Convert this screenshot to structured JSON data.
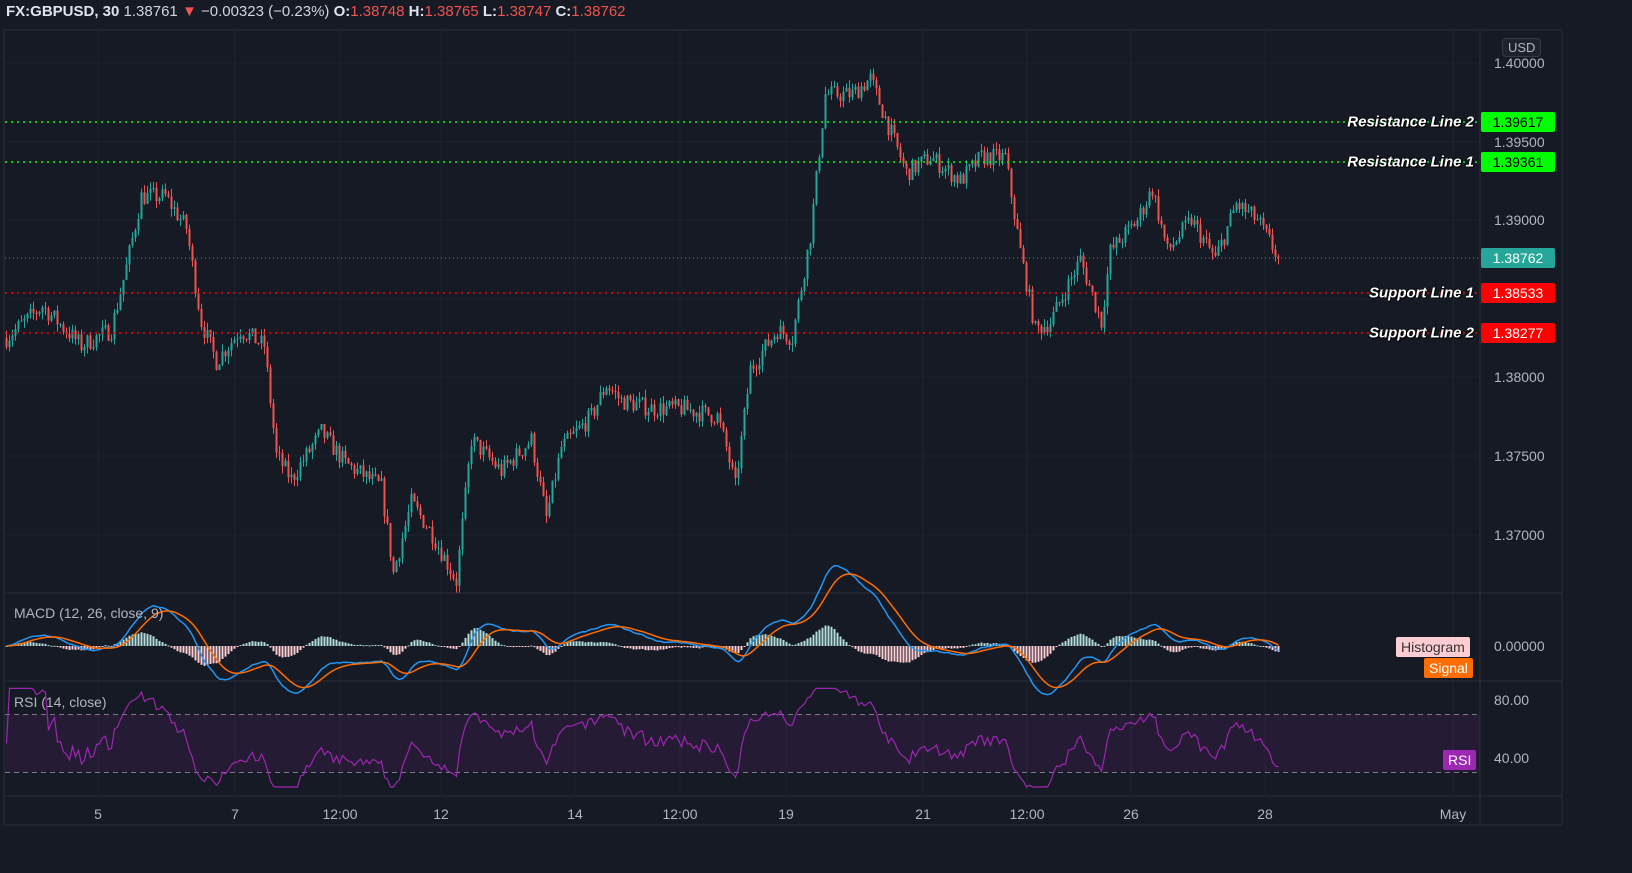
{
  "header": {
    "symbol": "FX:GBPUSD, 30",
    "last": "1.38761",
    "change": "−0.00323 (−0.23%)",
    "o_label": "O:",
    "o": "1.38748",
    "h_label": "H:",
    "h": "1.38765",
    "l_label": "L:",
    "l": "1.38747",
    "c_label": "C:",
    "c": "1.38762"
  },
  "currency": "USD",
  "price_axis": [
    "1.40000",
    "1.39500",
    "1.39000",
    "1.38000",
    "1.37500",
    "1.37000"
  ],
  "levels": [
    {
      "name": "Resistance Line 2",
      "value": "1.39617",
      "color": "#00ff00"
    },
    {
      "name": "Resistance Line 1",
      "value": "1.39361",
      "color": "#00ff00"
    },
    {
      "name": "Support Line 1",
      "value": "1.38533",
      "color": "#ff0000"
    },
    {
      "name": "Support Line 2",
      "value": "1.38277",
      "color": "#ff0000"
    }
  ],
  "current_price": {
    "value": "1.38762",
    "color": "#26a69a"
  },
  "macd": {
    "title": "MACD (12, 26, close, 9)",
    "axis": "0.00000",
    "histogram_label": "Histogram",
    "signal_label": "Signal"
  },
  "rsi": {
    "title": "RSI (14, close)",
    "axis": [
      "80.00",
      "40.00"
    ],
    "label": "RSI"
  },
  "time_axis": [
    "5",
    "7",
    "12:00",
    "12",
    "14",
    "12:00",
    "19",
    "21",
    "12:00",
    "26",
    "28",
    "May"
  ],
  "colors": {
    "up": "#26a69a",
    "down": "#ef5350",
    "macd": "#2196f3",
    "signal": "#ff6d00",
    "rsi": "#9c27b0"
  },
  "chart_data": {
    "type": "candlestick",
    "title": "FX:GBPUSD, 30",
    "ylim": [
      1.3645,
      1.4015
    ],
    "x_unit": "bar index (30-min)",
    "close_path": [
      [
        0,
        1.3825
      ],
      [
        12,
        1.3845
      ],
      [
        25,
        1.382
      ],
      [
        35,
        1.383
      ],
      [
        40,
        1.387
      ],
      [
        45,
        1.3915
      ],
      [
        53,
        1.3915
      ],
      [
        60,
        1.3895
      ],
      [
        65,
        1.3835
      ],
      [
        70,
        1.381
      ],
      [
        78,
        1.383
      ],
      [
        86,
        1.382
      ],
      [
        90,
        1.375
      ],
      [
        95,
        1.3735
      ],
      [
        105,
        1.3765
      ],
      [
        113,
        1.3745
      ],
      [
        125,
        1.373
      ],
      [
        129,
        1.3675
      ],
      [
        135,
        1.372
      ],
      [
        142,
        1.37
      ],
      [
        150,
        1.367
      ],
      [
        155,
        1.376
      ],
      [
        165,
        1.374
      ],
      [
        175,
        1.376
      ],
      [
        180,
        1.371
      ],
      [
        185,
        1.3755
      ],
      [
        195,
        1.3775
      ],
      [
        200,
        1.3795
      ],
      [
        205,
        1.3785
      ],
      [
        215,
        1.378
      ],
      [
        225,
        1.378
      ],
      [
        237,
        1.3775
      ],
      [
        240,
        1.3755
      ],
      [
        243,
        1.373
      ],
      [
        248,
        1.3805
      ],
      [
        257,
        1.383
      ],
      [
        262,
        1.3825
      ],
      [
        268,
        1.389
      ],
      [
        273,
        1.398
      ],
      [
        282,
        1.398
      ],
      [
        288,
        1.399
      ],
      [
        295,
        1.3955
      ],
      [
        300,
        1.393
      ],
      [
        308,
        1.394
      ],
      [
        318,
        1.3925
      ],
      [
        325,
        1.394
      ],
      [
        333,
        1.394
      ],
      [
        338,
        1.388
      ],
      [
        343,
        1.383
      ],
      [
        348,
        1.3835
      ],
      [
        358,
        1.3875
      ],
      [
        365,
        1.3835
      ],
      [
        368,
        1.388
      ],
      [
        377,
        1.39
      ],
      [
        382,
        1.392
      ],
      [
        387,
        1.388
      ],
      [
        395,
        1.39
      ],
      [
        403,
        1.3875
      ],
      [
        410,
        1.391
      ],
      [
        417,
        1.39
      ],
      [
        424,
        1.3876
      ]
    ]
  }
}
